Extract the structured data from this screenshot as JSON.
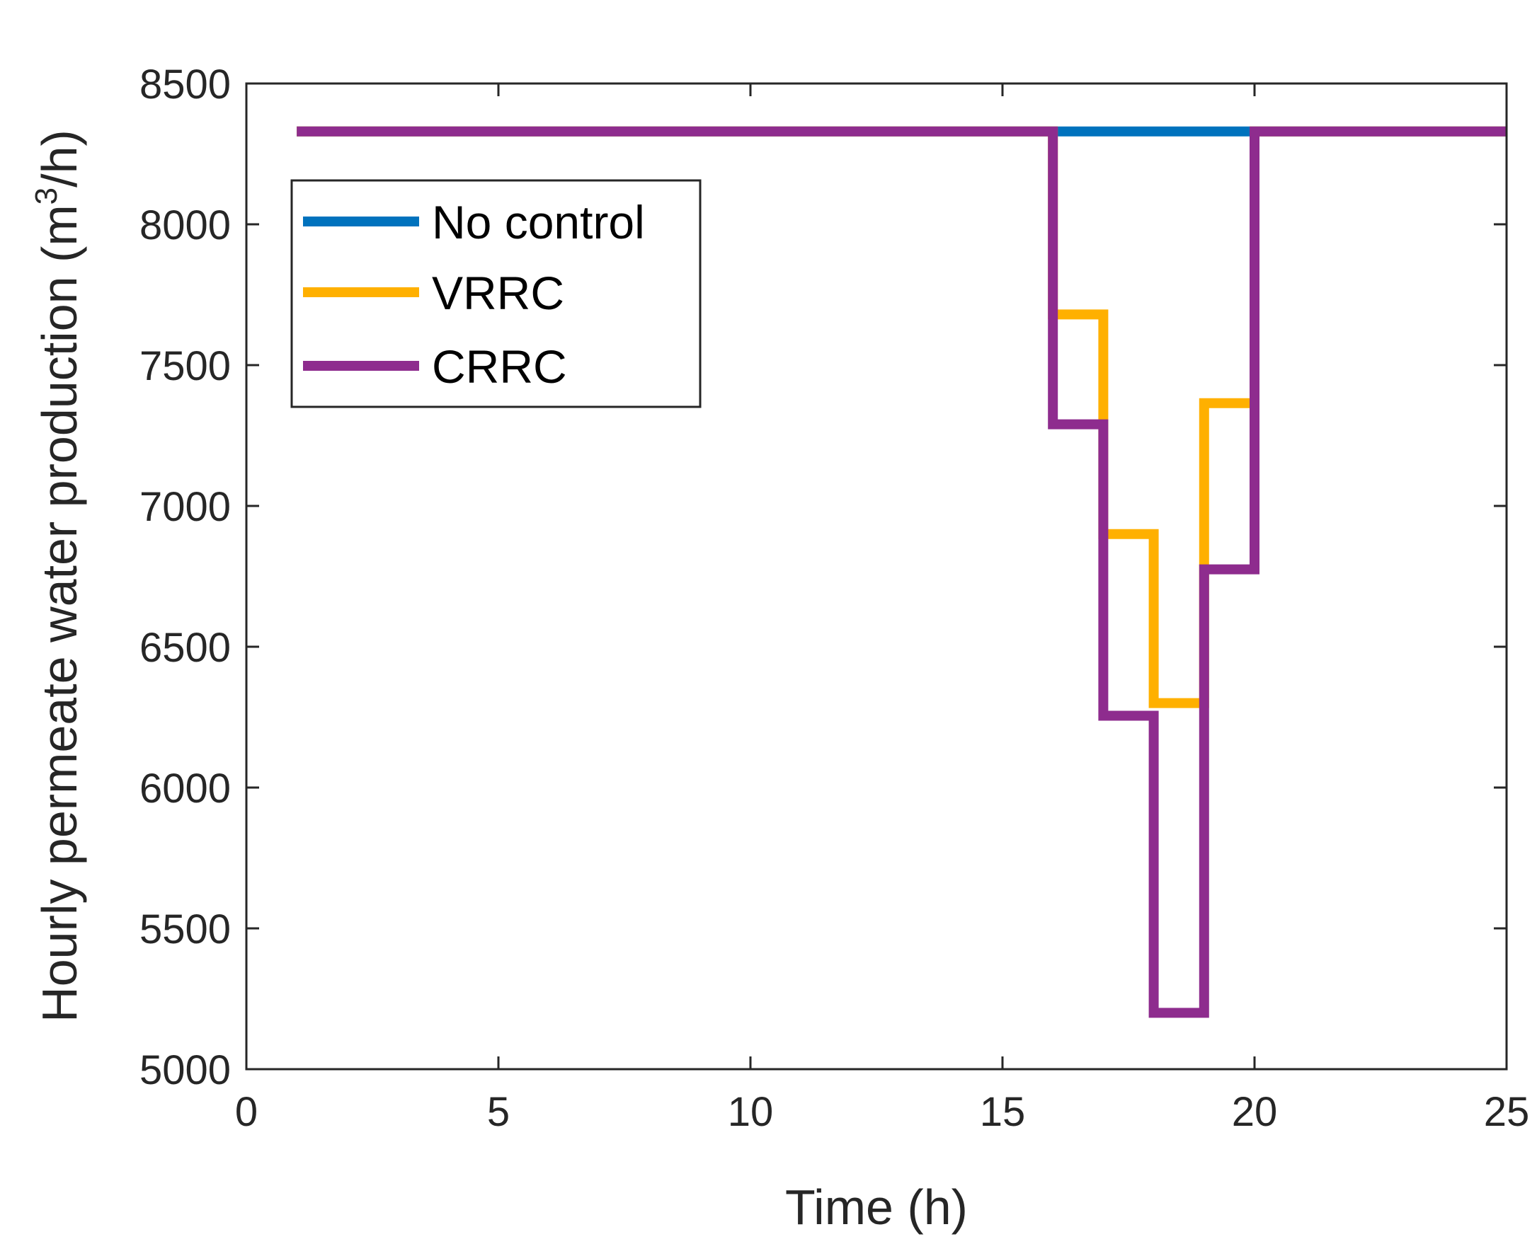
{
  "chart_data": {
    "type": "line",
    "step": "stairs",
    "title": "",
    "xlabel": "Time (h)",
    "ylabel_main": "Hourly permeate water production (m",
    "ylabel_sup": "3",
    "ylabel_tail": "/h)",
    "xlim": [
      0,
      25
    ],
    "ylim": [
      5000,
      8500
    ],
    "xticks": [
      0,
      5,
      10,
      15,
      20,
      25
    ],
    "yticks": [
      5000,
      5500,
      6000,
      6500,
      7000,
      7500,
      8000,
      8500
    ],
    "grid": false,
    "legend_position": "upper-left",
    "series": [
      {
        "name": "No control",
        "color": "#0072BD",
        "x": [
          1,
          2,
          3,
          4,
          5,
          6,
          7,
          8,
          9,
          10,
          11,
          12,
          13,
          14,
          15,
          16,
          17,
          18,
          19,
          20,
          21,
          22,
          23,
          24
        ],
        "values": [
          8330,
          8330,
          8330,
          8330,
          8330,
          8330,
          8330,
          8330,
          8330,
          8330,
          8330,
          8330,
          8330,
          8330,
          8330,
          8330,
          8330,
          8330,
          8330,
          8330,
          8330,
          8330,
          8330,
          8330
        ]
      },
      {
        "name": "VRRC",
        "color": "#FFB000",
        "x": [
          1,
          2,
          3,
          4,
          5,
          6,
          7,
          8,
          9,
          10,
          11,
          12,
          13,
          14,
          15,
          16,
          17,
          18,
          19,
          20,
          21,
          22,
          23,
          24
        ],
        "values": [
          8330,
          8330,
          8330,
          8330,
          8330,
          8330,
          8330,
          8330,
          8330,
          8330,
          8330,
          8330,
          8330,
          8330,
          8330,
          7680,
          6900,
          6300,
          7365,
          8330,
          8330,
          8330,
          8330,
          8330
        ]
      },
      {
        "name": "CRRC",
        "color": "#8E2C8E",
        "x": [
          1,
          2,
          3,
          4,
          5,
          6,
          7,
          8,
          9,
          10,
          11,
          12,
          13,
          14,
          15,
          16,
          17,
          18,
          19,
          20,
          21,
          22,
          23,
          24
        ],
        "values": [
          8330,
          8330,
          8330,
          8330,
          8330,
          8330,
          8330,
          8330,
          8330,
          8330,
          8330,
          8330,
          8330,
          8330,
          8330,
          7290,
          6255,
          5200,
          6775,
          8330,
          8330,
          8330,
          8330,
          8330
        ]
      }
    ]
  }
}
